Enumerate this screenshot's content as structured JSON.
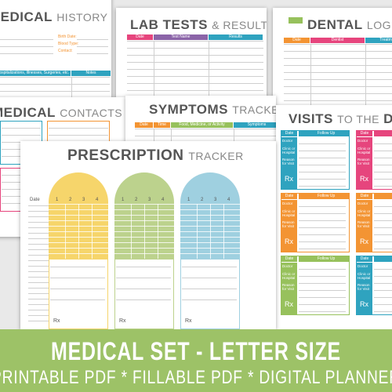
{
  "pages": {
    "medical_history": {
      "title_bold": "MEDICAL",
      "title_light": "HISTORY",
      "fields": [
        "Birth Date:",
        "Blood Type:",
        "Contact:"
      ],
      "columns": [
        "Hospitalizations, Illnesses, Surgeries, etc.",
        "Notes"
      ]
    },
    "lab_tests": {
      "title_bold": "LAB TESTS",
      "title_light": "& RESULTS",
      "columns": [
        "Date",
        "Test Name",
        "Results"
      ]
    },
    "dental_log": {
      "title_bold": "DENTAL",
      "title_light": "LOG",
      "columns": [
        "Date",
        "Dentist",
        "Treatment"
      ]
    },
    "medical_contacts": {
      "title_bold": "MEDICAL",
      "title_light": "CONTACTS"
    },
    "symptoms_tracker": {
      "title_bold": "SYMPTOMS",
      "title_light": "TRACKER",
      "columns": [
        "Date",
        "Time",
        "Food, Medicine, or Activity",
        "Symptoms"
      ]
    },
    "visits": {
      "title_bold": "VISITS",
      "title_light": "TO THE",
      "title_bold2": "DOCTOR",
      "header": [
        "Date",
        "Follow Up"
      ],
      "labels": [
        "Doctor",
        "Clinic or Hospital",
        "Reason for Visit"
      ],
      "rx": "Rx"
    },
    "prescription_tracker": {
      "title_bold": "PRESCRIPTION",
      "title_light": "TRACKER",
      "date": "Date",
      "doses": [
        "1",
        "2",
        "3",
        "4"
      ],
      "rx": "Rx"
    }
  },
  "banner": {
    "title": "MEDICAL SET - LETTER SIZE",
    "subtitle": "PRINTABLE PDF * FILLABLE PDF * DIGITAL PLANNER"
  }
}
